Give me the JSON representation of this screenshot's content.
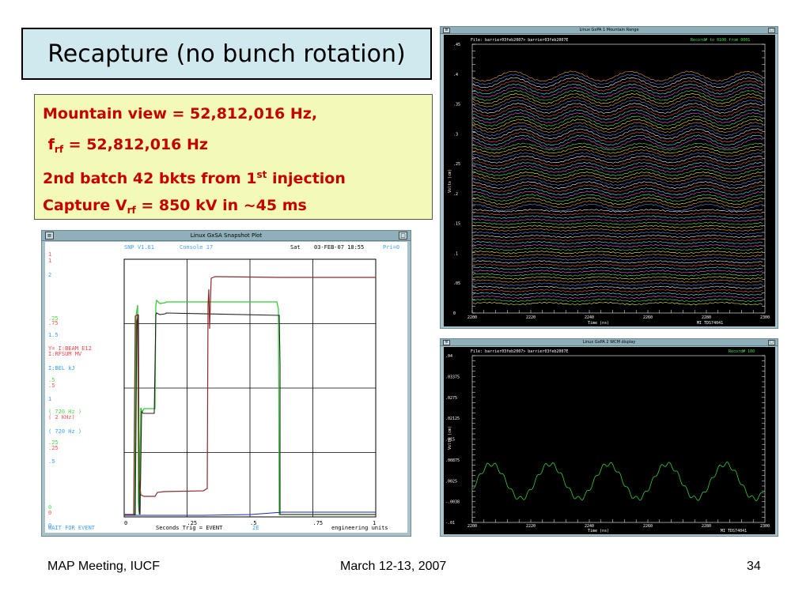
{
  "slide": {
    "title": "Recapture (no bunch rotation)",
    "footer_left": "MAP Meeting, IUCF",
    "footer_center": "March 12-13, 2007",
    "footer_right": "34",
    "colors": {
      "title_bg": "#cfe9ee",
      "info_bg": "#f3f9b7",
      "info_text": "#c40000"
    }
  },
  "info": {
    "line1": "Mountain view = 52,812,016 Hz,",
    "line2_f": "f",
    "line2_sub": "rf",
    "line2_rest": " = 52,812,016 Hz",
    "line3_main": "2nd batch 42 bkts from 1",
    "line3_sup": "st",
    "line3_rest": " injection",
    "line4_main": "Capture V",
    "line4_sub": "rf",
    "line4_rest": " = 850 kV in ~45 ms"
  },
  "snapshot": {
    "window_title": "Linux GxSA  Snapshot Plot",
    "header_prog": "SNP V1.61",
    "header_console": "Console  17",
    "header_day": "Sat",
    "header_date": "03-FEB-07 18:55",
    "header_pri": "Pri=0",
    "left_labels": [
      {
        "text": "1",
        "color": "#ff5050",
        "y": 18
      },
      {
        "text": "1",
        "color": "#ff5050",
        "y": 26
      },
      {
        "text": "2",
        "color": "#3aa0ff",
        "y": 44
      },
      {
        "text": ".25",
        "color": "#45e045",
        "y": 99
      },
      {
        "text": ".75",
        "color": "#ff5050",
        "y": 105
      },
      {
        "text": "1.5",
        "color": "#3aa0ff",
        "y": 120
      },
      {
        "text": "Y= I:BEAM    E12",
        "color": "#ff4040",
        "y": 137
      },
      {
        "text": "   I:RFSUM   MV",
        "color": "#ff4040",
        "y": 144
      },
      {
        "text": "   I:BEL     kJ",
        "color": "#3aa0ff",
        "y": 162
      },
      {
        "text": ".5",
        "color": "#45e045",
        "y": 177
      },
      {
        "text": ".5",
        "color": "#ff5050",
        "y": 184
      },
      {
        "text": "1",
        "color": "#3aa0ff",
        "y": 201
      },
      {
        "text": "( 720 Hz )",
        "color": "#45e045",
        "y": 217
      },
      {
        "text": "( 2   KHz)",
        "color": "#ff5050",
        "y": 224
      },
      {
        "text": "( 720 Hz )",
        "color": "#3aa0ff",
        "y": 242
      },
      {
        "text": ".25",
        "color": "#45e045",
        "y": 256
      },
      {
        "text": ".25",
        "color": "#ff5050",
        "y": 263
      },
      {
        "text": ".5",
        "color": "#3aa0ff",
        "y": 280
      },
      {
        "text": "0",
        "color": "#45e045",
        "y": 338
      },
      {
        "text": "0",
        "color": "#ff5050",
        "y": 345
      },
      {
        "text": "0",
        "color": "#3aa0ff",
        "y": 361
      }
    ],
    "x_ticks": [
      "0",
      ".25",
      ".5",
      ".75",
      "1"
    ],
    "footer_status": "WAIT FOR EVENT",
    "footer_mid": "Seconds  Trig = EVENT",
    "footer_trig": "2E",
    "footer_units": "engineering units",
    "series_colors": {
      "rfsum": "#33cc33",
      "beam": "#8a2a2a",
      "bel": "#202020",
      "blue": "#1a2aa8"
    }
  },
  "mountain": {
    "window_title": "Linux GxPA 1   Mountain Range",
    "header_file": "File: barrier03feb2007>  barrier03feb2007E",
    "header_record": "Record# to 0100 from 0001",
    "y_ticks": [
      ".45",
      ".4",
      ".35",
      ".3",
      ".25",
      ".2",
      ".15",
      ".1",
      ".05",
      "0"
    ],
    "y_label": "Volts (cm)",
    "x_ticks": [
      "2200",
      "2220",
      "2240",
      "2260",
      "2280",
      "2300"
    ],
    "x_label": "Time (ns)",
    "id_label": "MI TDS74041"
  },
  "wcm": {
    "window_title": "Linux GxPA 2   WCM display",
    "header_file": "File: barrier03feb2007>  barrier03feb2007E",
    "header_record": "Record# 100",
    "y_ticks": [
      ".04",
      ".03375",
      ".0275",
      ".02125",
      ".015",
      ".00875",
      ".0025",
      "-.0038",
      "-.01"
    ],
    "y_label": "Volts (cm)",
    "x_ticks": [
      "2200",
      "2220",
      "2240",
      "2260",
      "2280",
      "2300"
    ],
    "x_label": "Time (ns)",
    "id_label": "MI TDS74041"
  }
}
